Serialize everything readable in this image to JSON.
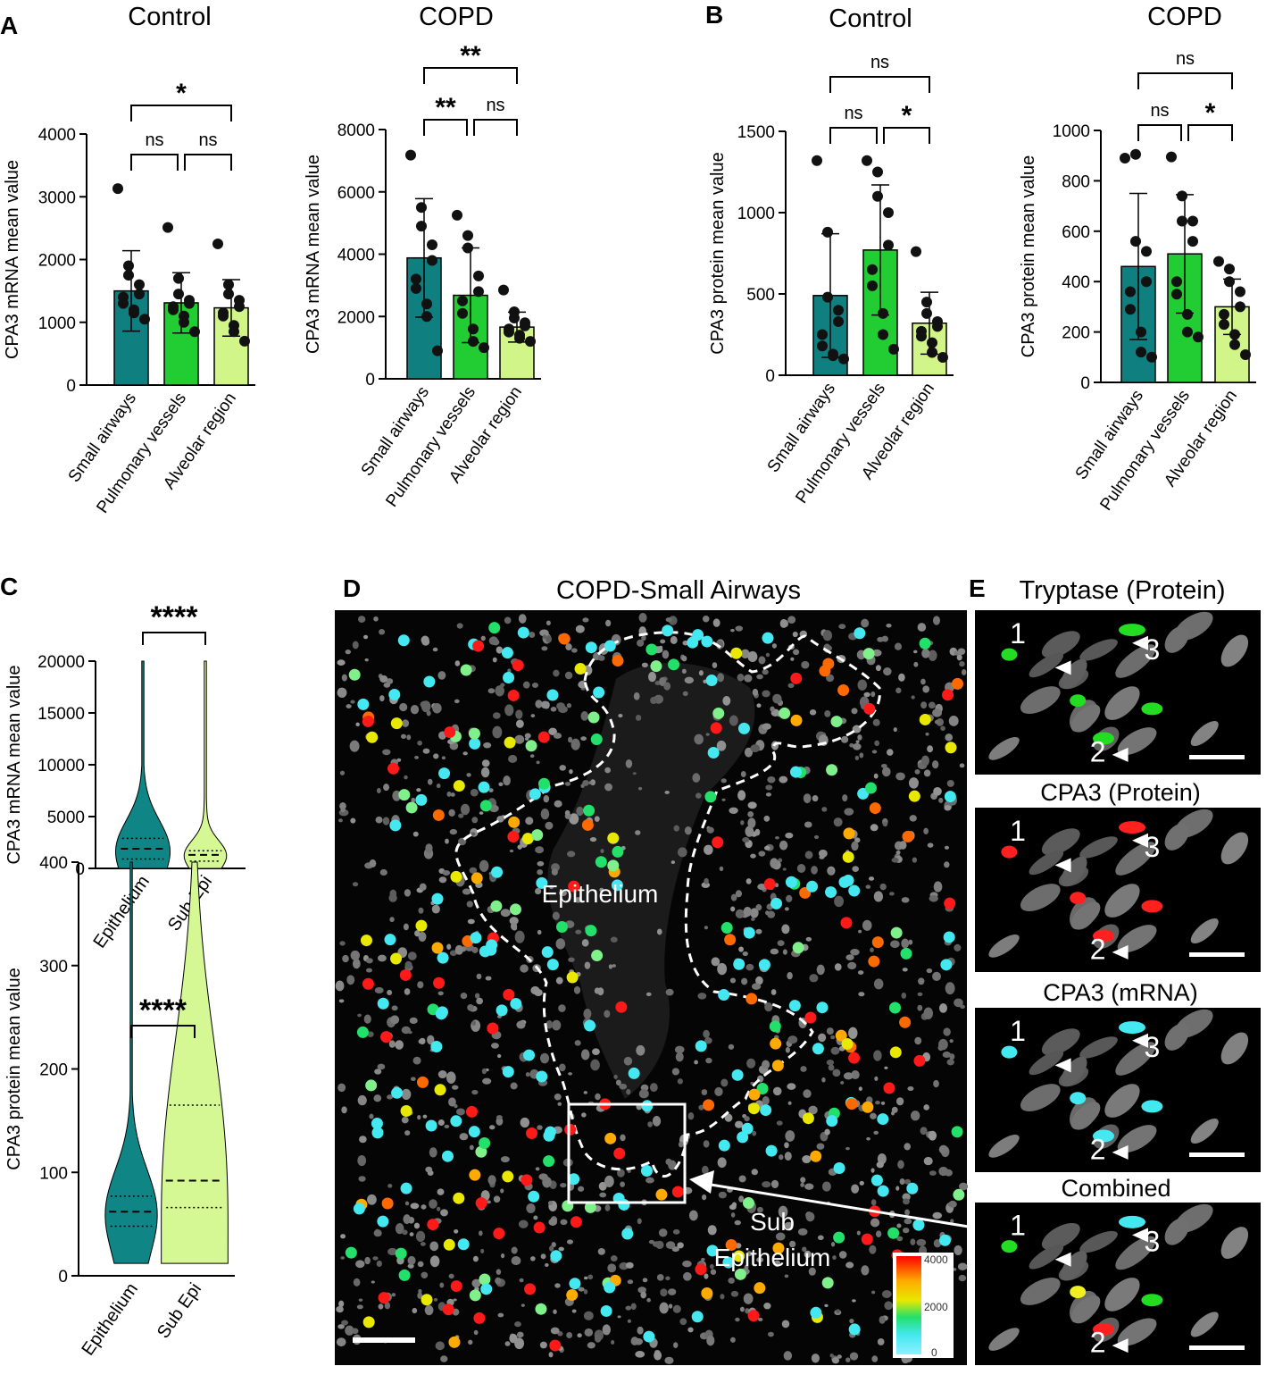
{
  "panel_labels": [
    "A",
    "B",
    "C",
    "D",
    "E"
  ],
  "colors": {
    "small_airways": "#0f7f7f",
    "pulmonary_vessels": "#22cc33",
    "alveolar_region": "#d2f58a",
    "epithelium_violin": "#0f8585",
    "sub_epi_violin": "#d6f894",
    "tissue_gray": "#7a7a7a",
    "background_black": "#000000",
    "tryptase_green": "#22dd22",
    "cpa3_protein_red": "#ff2020",
    "cpa3_mrna_cyan": "#44e8f0"
  },
  "chart_data": [
    {
      "id": "A-control",
      "type": "bar",
      "panel": "A",
      "title": "Control",
      "ylabel": "CPA3 mRNA mean value",
      "xlabel": "",
      "categories": [
        "Small airways",
        "Pulmonary vessels",
        "Alveolar region"
      ],
      "values": [
        1500,
        1310,
        1230
      ],
      "errors": [
        640,
        480,
        450
      ],
      "ylim": [
        0,
        4000
      ],
      "yticks": [
        0,
        1000,
        2000,
        3000,
        4000
      ],
      "points": [
        [
          3130,
          1900,
          1750,
          1600,
          1450,
          1400,
          1300,
          1200,
          1150,
          1050
        ],
        [
          2510,
          1700,
          1450,
          1350,
          1300,
          1250,
          1200,
          1100,
          1000,
          850
        ],
        [
          2250,
          1600,
          1450,
          1350,
          1250,
          1150,
          1100,
          950,
          850,
          700
        ]
      ],
      "significance": [
        {
          "from": 0,
          "to": 1,
          "label": "ns",
          "level": 1
        },
        {
          "from": 1,
          "to": 2,
          "label": "ns",
          "level": 1
        },
        {
          "from": 0,
          "to": 2,
          "label": "*",
          "level": 2
        }
      ]
    },
    {
      "id": "A-copd",
      "type": "bar",
      "panel": "A",
      "title": "COPD",
      "ylabel": "CPA3 mRNA mean value",
      "xlabel": "",
      "categories": [
        "Small airways",
        "Pulmonary vessels",
        "Alveolar region"
      ],
      "values": [
        3880,
        2680,
        1660
      ],
      "errors": [
        1900,
        1520,
        480
      ],
      "ylim": [
        0,
        8000
      ],
      "yticks": [
        0,
        2000,
        4000,
        6000,
        8000
      ],
      "points": [
        [
          7180,
          5500,
          4900,
          4300,
          3800,
          3200,
          2900,
          2400,
          2000,
          900
        ],
        [
          5250,
          4600,
          4200,
          3300,
          2800,
          2500,
          2100,
          1600,
          1200,
          1000
        ],
        [
          2850,
          2150,
          1950,
          1800,
          1700,
          1600,
          1500,
          1400,
          1300,
          1200
        ]
      ],
      "significance": [
        {
          "from": 0,
          "to": 1,
          "label": "**",
          "level": 1
        },
        {
          "from": 1,
          "to": 2,
          "label": "ns",
          "level": 1
        },
        {
          "from": 0,
          "to": 2,
          "label": "**",
          "level": 2
        }
      ]
    },
    {
      "id": "B-control",
      "type": "bar",
      "panel": "B",
      "title": "Control",
      "ylabel": "CPA3 protein mean value",
      "xlabel": "",
      "categories": [
        "Small airways",
        "Pulmonary vessels",
        "Alveolar region"
      ],
      "values": [
        490,
        770,
        320
      ],
      "errors": [
        380,
        400,
        190
      ],
      "ylim": [
        0,
        1500
      ],
      "yticks": [
        0,
        500,
        1000,
        1500
      ],
      "points": [
        [
          1320,
          880,
          480,
          400,
          330,
          250,
          180,
          130,
          120,
          100
        ],
        [
          1320,
          1250,
          1100,
          1000,
          800,
          650,
          550,
          380,
          250,
          160
        ],
        [
          760,
          450,
          380,
          330,
          300,
          270,
          240,
          200,
          140,
          110
        ]
      ],
      "significance": [
        {
          "from": 0,
          "to": 1,
          "label": "ns",
          "level": 1
        },
        {
          "from": 1,
          "to": 2,
          "label": "*",
          "level": 1
        },
        {
          "from": 0,
          "to": 2,
          "label": "ns",
          "level": 2
        }
      ]
    },
    {
      "id": "B-copd",
      "type": "bar",
      "panel": "B",
      "title": "COPD",
      "ylabel": "CPA3 protein mean value",
      "xlabel": "",
      "categories": [
        "Small airways",
        "Pulmonary vessels",
        "Alveolar region"
      ],
      "values": [
        460,
        510,
        300
      ],
      "errors": [
        290,
        235,
        110
      ],
      "ylim": [
        0,
        1000
      ],
      "yticks": [
        0,
        200,
        400,
        600,
        800,
        1000
      ],
      "points": [
        [
          890,
          905,
          560,
          520,
          400,
          360,
          290,
          200,
          120,
          100
        ],
        [
          895,
          740,
          640,
          640,
          560,
          400,
          350,
          270,
          200,
          180
        ],
        [
          480,
          450,
          400,
          360,
          300,
          270,
          230,
          190,
          150,
          110
        ]
      ],
      "significance": [
        {
          "from": 0,
          "to": 1,
          "label": "ns",
          "level": 1
        },
        {
          "from": 1,
          "to": 2,
          "label": "*",
          "level": 1
        },
        {
          "from": 0,
          "to": 2,
          "label": "ns",
          "level": 2
        }
      ]
    },
    {
      "id": "C-mrna",
      "type": "violin",
      "panel": "C",
      "title": "",
      "ylabel": "CPA3 mRNA mean value",
      "xlabel": "",
      "categories": [
        "Epithelium",
        "Sub Epi"
      ],
      "ylim": [
        0,
        20000
      ],
      "yticks": [
        0,
        5000,
        10000,
        15000,
        20000
      ],
      "range": [
        [
          0,
          20000
        ],
        [
          0,
          20000
        ]
      ],
      "median": [
        1900,
        1300
      ],
      "q1": [
        900,
        700
      ],
      "q3": [
        2900,
        1700
      ],
      "significance": [
        {
          "from": 0,
          "to": 1,
          "label": "****",
          "level": 1
        }
      ]
    },
    {
      "id": "C-protein",
      "type": "violin",
      "panel": "C",
      "title": "",
      "ylabel": "CPA3 protein mean value",
      "xlabel": "",
      "categories": [
        "Epithelium",
        "Sub Epi"
      ],
      "ylim": [
        0,
        400
      ],
      "yticks": [
        0,
        100,
        200,
        300,
        400
      ],
      "range": [
        [
          12,
          400
        ],
        [
          12,
          400
        ]
      ],
      "median": [
        62,
        92
      ],
      "q1": [
        48,
        66
      ],
      "q3": [
        77,
        165
      ],
      "significance": [
        {
          "from": 0,
          "to": 1,
          "label": "****",
          "level": 1
        }
      ]
    }
  ],
  "panel_d": {
    "title": "COPD-Small Airways",
    "label_epithelium": "Epithelium",
    "label_sub_line1": "Sub",
    "label_sub_line2": "Epithelium",
    "colorbar_ticks": [
      "4000",
      "2000",
      "0"
    ],
    "colorbar_colors": [
      "#ff0000",
      "#ffaa00",
      "#e8e800",
      "#22e06a",
      "#44e8f0",
      "#8ef0ff"
    ]
  },
  "panel_e": {
    "subpanels": [
      {
        "title": "Tryptase (Protein)",
        "stain": "tryptase"
      },
      {
        "title": "CPA3 (Protein)",
        "stain": "cpa3_protein"
      },
      {
        "title": "CPA3 (mRNA)",
        "stain": "cpa3_mrna"
      },
      {
        "title": "Combined",
        "stain": "combined"
      }
    ],
    "cell_markers": [
      "1",
      "2",
      "3"
    ]
  }
}
